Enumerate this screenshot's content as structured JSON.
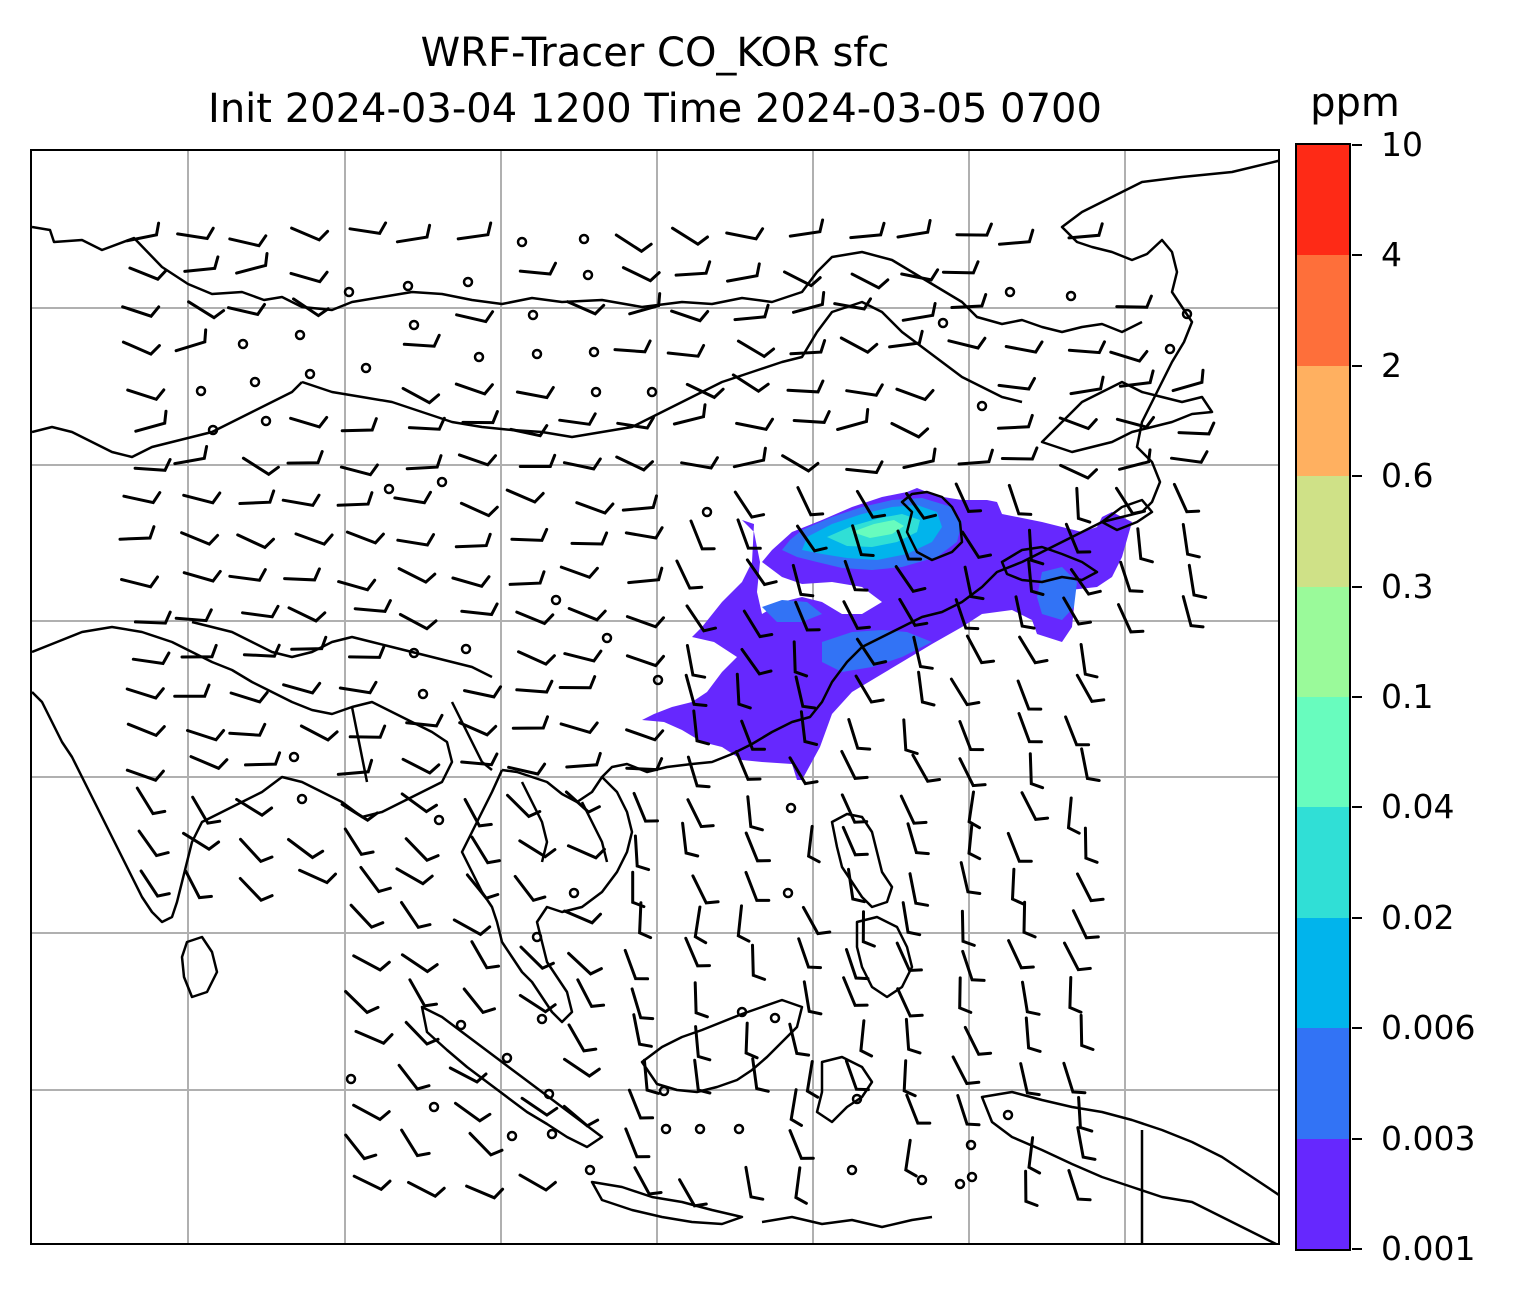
{
  "title": {
    "line1": "WRF-Tracer CO_KOR sfc",
    "line2": "Init 2024-03-04 1200 Time 2024-03-05 0700"
  },
  "colorbar": {
    "unit": "ppm",
    "labels": [
      "10",
      "4",
      "2",
      "0.6",
      "0.3",
      "0.1",
      "0.04",
      "0.02",
      "0.006",
      "0.003",
      "0.001"
    ],
    "colors": [
      "#fe2a16",
      "#fe6f3a",
      "#ffb060",
      "#cfe187",
      "#9afa9a",
      "#68fcbe",
      "#30dfd6",
      "#01b4ec",
      "#3273f5",
      "#6628fe"
    ]
  },
  "map": {
    "features": [
      "coastlines",
      "country-borders",
      "gridlines",
      "wind-barbs",
      "co-tracer-plume"
    ],
    "plume_colors": {
      "level_0_001": "#6628fe",
      "level_0_003": "#3273f5",
      "level_0_006": "#01b4ec",
      "level_0_02": "#30dfd6",
      "level_0_04": "#68fcbe"
    },
    "gridline_color": "#b0b0b0"
  }
}
